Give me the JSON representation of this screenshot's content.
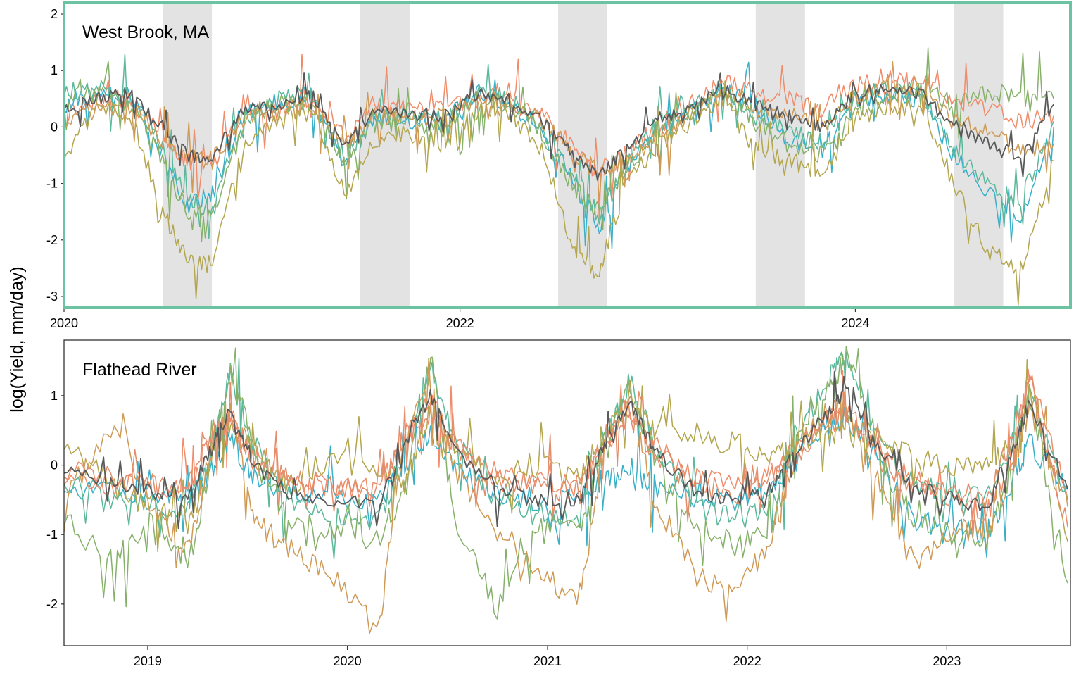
{
  "chart_data": {
    "type": "line",
    "ylabel": "log(Yield, mm/day)",
    "palette": [
      "#f08c6a",
      "#3ab0c8",
      "#5bb89a",
      "#86b16a",
      "#b3a64e",
      "#cf9a55",
      "#e38d6b"
    ],
    "mean_color": "#595959",
    "panels": [
      {
        "title": "West Brook, MA",
        "highlight_border_color": "#6cc3a3",
        "xlim": [
          "2020-01-01",
          "2025-02-01"
        ],
        "ylim": [
          -3.2,
          2.2
        ],
        "x_ticks": [
          {
            "date": "2020-01-01",
            "label": "2020"
          },
          {
            "date": "2022-01-01",
            "label": "2022"
          },
          {
            "date": "2024-01-01",
            "label": "2024"
          }
        ],
        "y_ticks": [
          {
            "value": 2,
            "label": "2"
          },
          {
            "value": 1,
            "label": "1"
          },
          {
            "value": 0,
            "label": "0"
          },
          {
            "value": -1,
            "label": "-1"
          },
          {
            "value": -2,
            "label": "-2"
          },
          {
            "value": -3,
            "label": "-3"
          }
        ],
        "shaded_periods": [
          [
            "2020-07-01",
            "2020-09-30"
          ],
          [
            "2021-07-01",
            "2021-09-30"
          ],
          [
            "2022-07-01",
            "2022-09-30"
          ],
          [
            "2023-07-01",
            "2023-09-30"
          ],
          [
            "2024-07-01",
            "2024-09-30"
          ]
        ],
        "mean_series": {
          "x": [
            "2020-01-01",
            "2020-03-01",
            "2020-05-01",
            "2020-07-01",
            "2020-08-15",
            "2020-10-01",
            "2020-12-01",
            "2021-02-01",
            "2021-04-01",
            "2021-06-01",
            "2021-08-01",
            "2021-10-01",
            "2021-12-01",
            "2022-02-01",
            "2022-04-01",
            "2022-06-01",
            "2022-08-01",
            "2022-09-15",
            "2022-11-01",
            "2023-01-01",
            "2023-03-01",
            "2023-05-01",
            "2023-07-01",
            "2023-09-01",
            "2023-11-01",
            "2024-01-01",
            "2024-03-01",
            "2024-05-01",
            "2024-07-01",
            "2024-09-01",
            "2024-11-01",
            "2025-01-01"
          ],
          "y": [
            0.3,
            0.5,
            0.6,
            0.0,
            -0.5,
            -0.6,
            0.4,
            0.4,
            0.6,
            -0.3,
            0.3,
            0.2,
            0.2,
            0.6,
            0.5,
            0.1,
            -0.5,
            -0.9,
            -0.4,
            0.1,
            0.3,
            0.7,
            0.4,
            0.2,
            0.0,
            0.6,
            0.7,
            0.6,
            0.0,
            -0.3,
            -0.5,
            0.4
          ]
        },
        "series": [
          {
            "y": [
              0.2,
              0.5,
              0.5,
              -0.2,
              -0.6,
              -0.7,
              0.3,
              0.3,
              0.5,
              -0.2,
              0.4,
              0.3,
              0.3,
              0.5,
              0.6,
              0.2,
              -0.4,
              -0.8,
              -0.5,
              0.0,
              0.4,
              0.8,
              0.6,
              0.5,
              0.3,
              0.7,
              0.9,
              0.8,
              0.5,
              0.3,
              0.1,
              0.2
            ]
          },
          {
            "y": [
              0.4,
              0.6,
              0.6,
              -0.5,
              -1.4,
              -1.2,
              0.3,
              0.4,
              0.6,
              -0.6,
              0.2,
              0.1,
              0.1,
              0.6,
              0.4,
              -0.1,
              -1.0,
              -1.8,
              -0.8,
              0.0,
              0.2,
              0.7,
              0.3,
              -0.2,
              -0.4,
              0.5,
              0.6,
              0.5,
              -0.5,
              -1.2,
              -1.6,
              0.0
            ]
          },
          {
            "y": [
              0.6,
              0.7,
              0.5,
              -0.4,
              -1.2,
              -1.5,
              0.3,
              0.5,
              0.6,
              -0.6,
              0.2,
              0.2,
              0.1,
              0.6,
              0.5,
              0.0,
              -0.9,
              -1.6,
              -0.7,
              0.1,
              0.3,
              0.7,
              0.2,
              -0.1,
              -0.3,
              0.5,
              0.7,
              0.6,
              -0.4,
              -1.0,
              -1.3,
              0.1
            ]
          },
          {
            "y": [
              0.5,
              0.6,
              0.4,
              -0.6,
              -1.5,
              -1.6,
              0.2,
              0.4,
              0.5,
              -0.7,
              0.1,
              0.1,
              0.0,
              0.5,
              0.4,
              -0.1,
              -1.1,
              -1.5,
              -0.8,
              0.0,
              0.2,
              0.6,
              0.1,
              -0.3,
              -0.5,
              0.3,
              0.5,
              0.7,
              0.4,
              0.6,
              0.6,
              0.5
            ]
          },
          {
            "y": [
              -0.5,
              0.3,
              0.3,
              -1.5,
              -2.4,
              -2.4,
              -0.2,
              0.1,
              0.4,
              -1.2,
              -0.2,
              -0.1,
              -0.3,
              0.3,
              0.3,
              -0.4,
              -2.2,
              -2.6,
              -1.0,
              -0.3,
              0.1,
              0.5,
              -0.4,
              -0.6,
              -0.8,
              0.1,
              0.4,
              0.3,
              -1.0,
              -2.2,
              -2.5,
              -0.6
            ]
          },
          {
            "y": [
              0.1,
              0.3,
              0.4,
              -0.2,
              -0.5,
              -0.6,
              0.2,
              0.2,
              0.4,
              -0.3,
              0.2,
              0.2,
              0.2,
              0.4,
              0.5,
              0.1,
              -0.5,
              -0.8,
              -0.6,
              -0.2,
              0.2,
              0.6,
              0.3,
              0.2,
              0.0,
              0.5,
              0.8,
              0.7,
              0.1,
              -0.1,
              -0.4,
              -0.3
            ]
          }
        ]
      },
      {
        "title": "Flathead River",
        "xlim": [
          "2018-08-01",
          "2023-08-15"
        ],
        "ylim": [
          -2.6,
          1.8
        ],
        "x_ticks": [
          {
            "date": "2019-01-01",
            "label": "2019"
          },
          {
            "date": "2020-01-01",
            "label": "2020"
          },
          {
            "date": "2021-01-01",
            "label": "2021"
          },
          {
            "date": "2022-01-01",
            "label": "2022"
          },
          {
            "date": "2023-01-01",
            "label": "2023"
          }
        ],
        "y_ticks": [
          {
            "value": 1,
            "label": "1"
          },
          {
            "value": 0,
            "label": "0"
          },
          {
            "value": -1,
            "label": "-1"
          },
          {
            "value": -2,
            "label": "-2"
          }
        ],
        "mean_series": {
          "x": [
            "2018-08-01",
            "2018-11-01",
            "2019-01-15",
            "2019-03-15",
            "2019-05-01",
            "2019-06-01",
            "2019-07-15",
            "2019-09-15",
            "2019-12-01",
            "2020-03-01",
            "2020-04-15",
            "2020-06-01",
            "2020-07-15",
            "2020-10-01",
            "2020-12-15",
            "2021-03-01",
            "2021-04-15",
            "2021-06-01",
            "2021-07-15",
            "2021-10-01",
            "2021-12-15",
            "2022-02-15",
            "2022-04-01",
            "2022-06-01",
            "2022-07-01",
            "2022-09-01",
            "2022-11-01",
            "2023-01-15",
            "2023-03-15",
            "2023-05-01",
            "2023-06-01",
            "2023-08-10"
          ],
          "y": [
            -0.1,
            -0.3,
            -0.4,
            -0.5,
            0.3,
            0.8,
            0.0,
            -0.4,
            -0.5,
            -0.5,
            0.3,
            1.0,
            0.2,
            -0.4,
            -0.5,
            -0.5,
            0.3,
            0.9,
            0.2,
            -0.4,
            -0.5,
            -0.3,
            0.2,
            0.8,
            1.1,
            0.2,
            -0.3,
            -0.5,
            -0.6,
            0.2,
            0.9,
            -0.35
          ]
        },
        "series": [
          {
            "y": [
              -0.2,
              -0.3,
              -0.3,
              -0.4,
              0.4,
              0.7,
              0.1,
              -0.2,
              -0.3,
              -0.3,
              0.4,
              0.9,
              0.3,
              -0.1,
              -0.2,
              -0.3,
              0.3,
              0.8,
              0.3,
              -0.2,
              -0.3,
              -0.1,
              0.3,
              0.6,
              0.7,
              0.2,
              -0.3,
              -0.5,
              -0.7,
              0.1,
              1.3,
              -0.5
            ]
          },
          {
            "y": [
              -0.3,
              -0.4,
              -0.4,
              -0.5,
              0.0,
              0.4,
              -0.2,
              -0.4,
              -0.5,
              -0.5,
              0.0,
              0.5,
              -0.1,
              -0.4,
              -0.5,
              -0.5,
              -0.2,
              -0.1,
              -0.3,
              -0.5,
              -0.5,
              -0.4,
              0.2,
              0.6,
              0.7,
              0.0,
              -0.8,
              -0.9,
              -1.0,
              -0.2,
              0.3,
              -0.3
            ]
          },
          {
            "y": [
              -0.2,
              -0.4,
              -0.5,
              -0.7,
              0.3,
              1.3,
              0.3,
              -0.5,
              -0.7,
              -0.8,
              0.3,
              1.4,
              0.4,
              -0.6,
              -0.7,
              -0.8,
              0.4,
              1.2,
              0.3,
              -0.6,
              -0.8,
              -0.6,
              0.4,
              1.3,
              1.6,
              0.3,
              -0.3,
              -0.4,
              -0.5,
              0.3,
              1.0,
              -0.5
            ]
          },
          {
            "y": [
              -0.8,
              -1.4,
              -0.7,
              -1.5,
              0.2,
              1.4,
              0.2,
              -0.8,
              -0.9,
              -1.0,
              -0.4,
              1.6,
              -0.8,
              -2.1,
              -0.8,
              -1.0,
              0.3,
              1.1,
              0.1,
              -0.9,
              -1.2,
              -0.9,
              0.4,
              1.1,
              1.6,
              0.2,
              -0.8,
              -1.0,
              -1.1,
              0.0,
              1.0,
              -1.7
            ]
          },
          {
            "y": [
              0.3,
              -0.3,
              -0.6,
              -0.9,
              0.2,
              0.6,
              0.2,
              -0.3,
              0.1,
              -0.1,
              -0.3,
              0.8,
              0.3,
              -0.2,
              0.0,
              -0.2,
              0.5,
              0.9,
              0.5,
              0.4,
              0.3,
              0.1,
              0.3,
              0.4,
              0.5,
              0.4,
              0.1,
              0.0,
              0.0,
              0.3,
              1.0,
              -1.1
            ]
          },
          {
            "y": [
              -0.4,
              0.6,
              -0.7,
              -1.2,
              0.3,
              0.8,
              -0.8,
              -1.2,
              -1.6,
              -2.2,
              0.5,
              1.1,
              0.0,
              -1.1,
              -1.5,
              -2.0,
              0.3,
              0.9,
              -0.5,
              -1.6,
              -1.9,
              -1.0,
              0.2,
              0.8,
              0.9,
              -0.3,
              -1.4,
              -0.9,
              -1.0,
              0.0,
              0.8,
              -0.6
            ]
          },
          {
            "y": [
              -0.1,
              -0.2,
              -0.3,
              -0.3,
              0.5,
              0.6,
              0.0,
              -0.2,
              -0.3,
              -0.3,
              0.3,
              0.8,
              0.2,
              -0.2,
              -0.3,
              -0.4,
              0.4,
              0.7,
              0.2,
              -0.3,
              -0.4,
              -0.2,
              0.1,
              0.7,
              0.8,
              0.1,
              -0.3,
              -0.4,
              -0.5,
              0.4,
              1.2,
              -0.9
            ]
          }
        ]
      }
    ]
  }
}
